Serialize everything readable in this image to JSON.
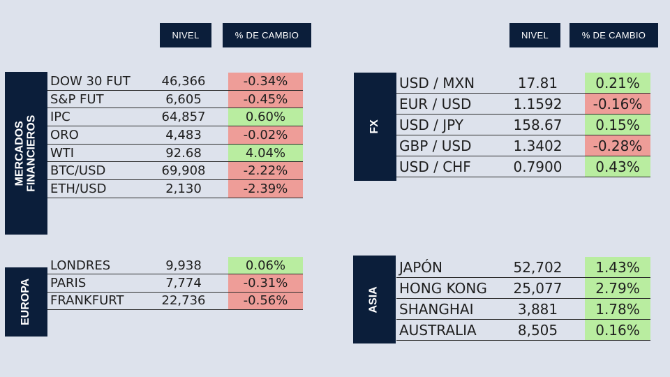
{
  "headers": {
    "level_label": "NIVEL",
    "change_label": "% DE CAMBIO"
  },
  "colors": {
    "positive": "#b9eda0",
    "negative": "#ee9d98",
    "navy": "#0b1e3a",
    "background": "#dde2ec"
  },
  "mercados": {
    "label_line1": "MERCADOS",
    "label_line2": "FINANCIEROS",
    "rows": [
      {
        "name": "DOW 30 FUT",
        "level": "46,366",
        "change": "-0.34%",
        "dir": "neg"
      },
      {
        "name": "S&P FUT",
        "level": "6,605",
        "change": "-0.45%",
        "dir": "neg"
      },
      {
        "name": "IPC",
        "level": "64,857",
        "change": "0.60%",
        "dir": "pos"
      },
      {
        "name": "ORO",
        "level": "4,483",
        "change": "-0.02%",
        "dir": "neg"
      },
      {
        "name": "WTI",
        "level": "92.68",
        "change": "4.04%",
        "dir": "pos"
      },
      {
        "name": "BTC/USD",
        "level": "69,908",
        "change": "-2.22%",
        "dir": "neg"
      },
      {
        "name": "ETH/USD",
        "level": "2,130",
        "change": "-2.39%",
        "dir": "neg"
      }
    ]
  },
  "europa": {
    "label": "EUROPA",
    "rows": [
      {
        "name": "LONDRES",
        "level": "9,938",
        "change": "0.06%",
        "dir": "pos"
      },
      {
        "name": "PARIS",
        "level": "7,774",
        "change": "-0.31%",
        "dir": "neg"
      },
      {
        "name": "FRANKFURT",
        "level": "22,736",
        "change": "-0.56%",
        "dir": "neg"
      }
    ]
  },
  "fx": {
    "label": "FX",
    "rows": [
      {
        "name": "USD / MXN",
        "level": "17.81",
        "change": "0.21%",
        "dir": "pos"
      },
      {
        "name": "EUR / USD",
        "level": "1.1592",
        "change": "-0.16%",
        "dir": "neg"
      },
      {
        "name": "USD / JPY",
        "level": "158.67",
        "change": "0.15%",
        "dir": "pos"
      },
      {
        "name": "GBP / USD",
        "level": "1.3402",
        "change": "-0.28%",
        "dir": "neg"
      },
      {
        "name": "USD / CHF",
        "level": "0.7900",
        "change": "0.43%",
        "dir": "pos"
      }
    ]
  },
  "asia": {
    "label": "ASIA",
    "rows": [
      {
        "name": "JAPÓN",
        "level": "52,702",
        "change": "1.43%",
        "dir": "pos"
      },
      {
        "name": "HONG KONG",
        "level": "25,077",
        "change": "2.79%",
        "dir": "pos"
      },
      {
        "name": "SHANGHAI",
        "level": "3,881",
        "change": "1.78%",
        "dir": "pos"
      },
      {
        "name": "AUSTRALIA",
        "level": "8,505",
        "change": "0.16%",
        "dir": "pos"
      }
    ]
  }
}
